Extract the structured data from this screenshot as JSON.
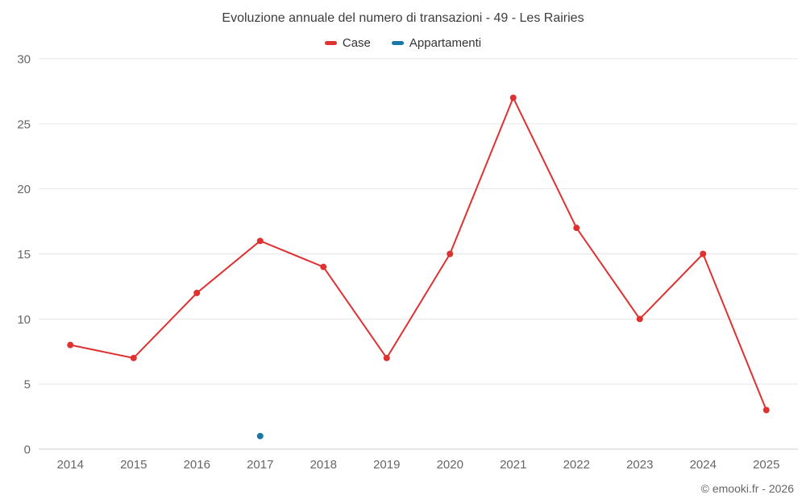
{
  "chart": {
    "title": "Evoluzione annuale del numero di transazioni - 49 - Les Rairies",
    "footer": "© emooki.fr - 2026"
  },
  "chart_data": {
    "type": "line",
    "title": "Evoluzione annuale del numero di transazioni - 49 - Les Rairies",
    "categories": [
      "2014",
      "2015",
      "2016",
      "2017",
      "2018",
      "2019",
      "2020",
      "2021",
      "2022",
      "2023",
      "2024",
      "2025"
    ],
    "series": [
      {
        "name": "Case",
        "color": "#e03131",
        "values": [
          8,
          7,
          12,
          16,
          14,
          7,
          15,
          27,
          17,
          10,
          15,
          3
        ]
      },
      {
        "name": "Appartamenti",
        "color": "#1878a8",
        "values": [
          null,
          null,
          null,
          1,
          null,
          null,
          null,
          null,
          null,
          null,
          null,
          null
        ]
      }
    ],
    "xlabel": "",
    "ylabel": "",
    "ylim": [
      0,
      30
    ],
    "yticks": [
      0,
      5,
      10,
      15,
      20,
      25,
      30
    ],
    "grid": "horizontal",
    "legend_position": "top",
    "footer": "© emooki.fr - 2026"
  }
}
